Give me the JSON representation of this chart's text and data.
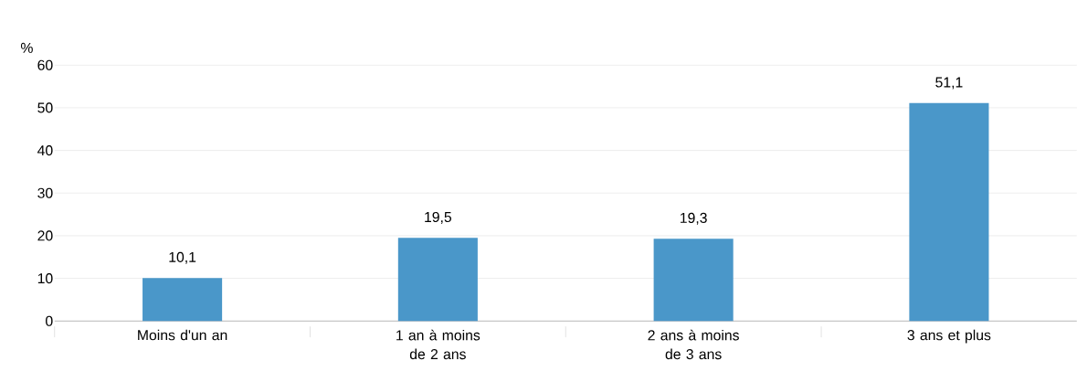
{
  "chart_data": {
    "type": "bar",
    "ylabel": "%",
    "categories": [
      "Moins d'un an",
      "1 an à moins de 2 ans",
      "2 ans à moins de 3 ans",
      "3 ans et plus"
    ],
    "values": [
      10.1,
      19.5,
      19.3,
      51.1
    ],
    "value_labels": [
      "10,1",
      "19,5",
      "19,3",
      "51,1"
    ],
    "color": "#4a97c9",
    "ylim": [
      0,
      60
    ],
    "yticks": [
      0,
      10,
      20,
      30,
      40,
      50,
      60
    ],
    "grid": "y"
  }
}
